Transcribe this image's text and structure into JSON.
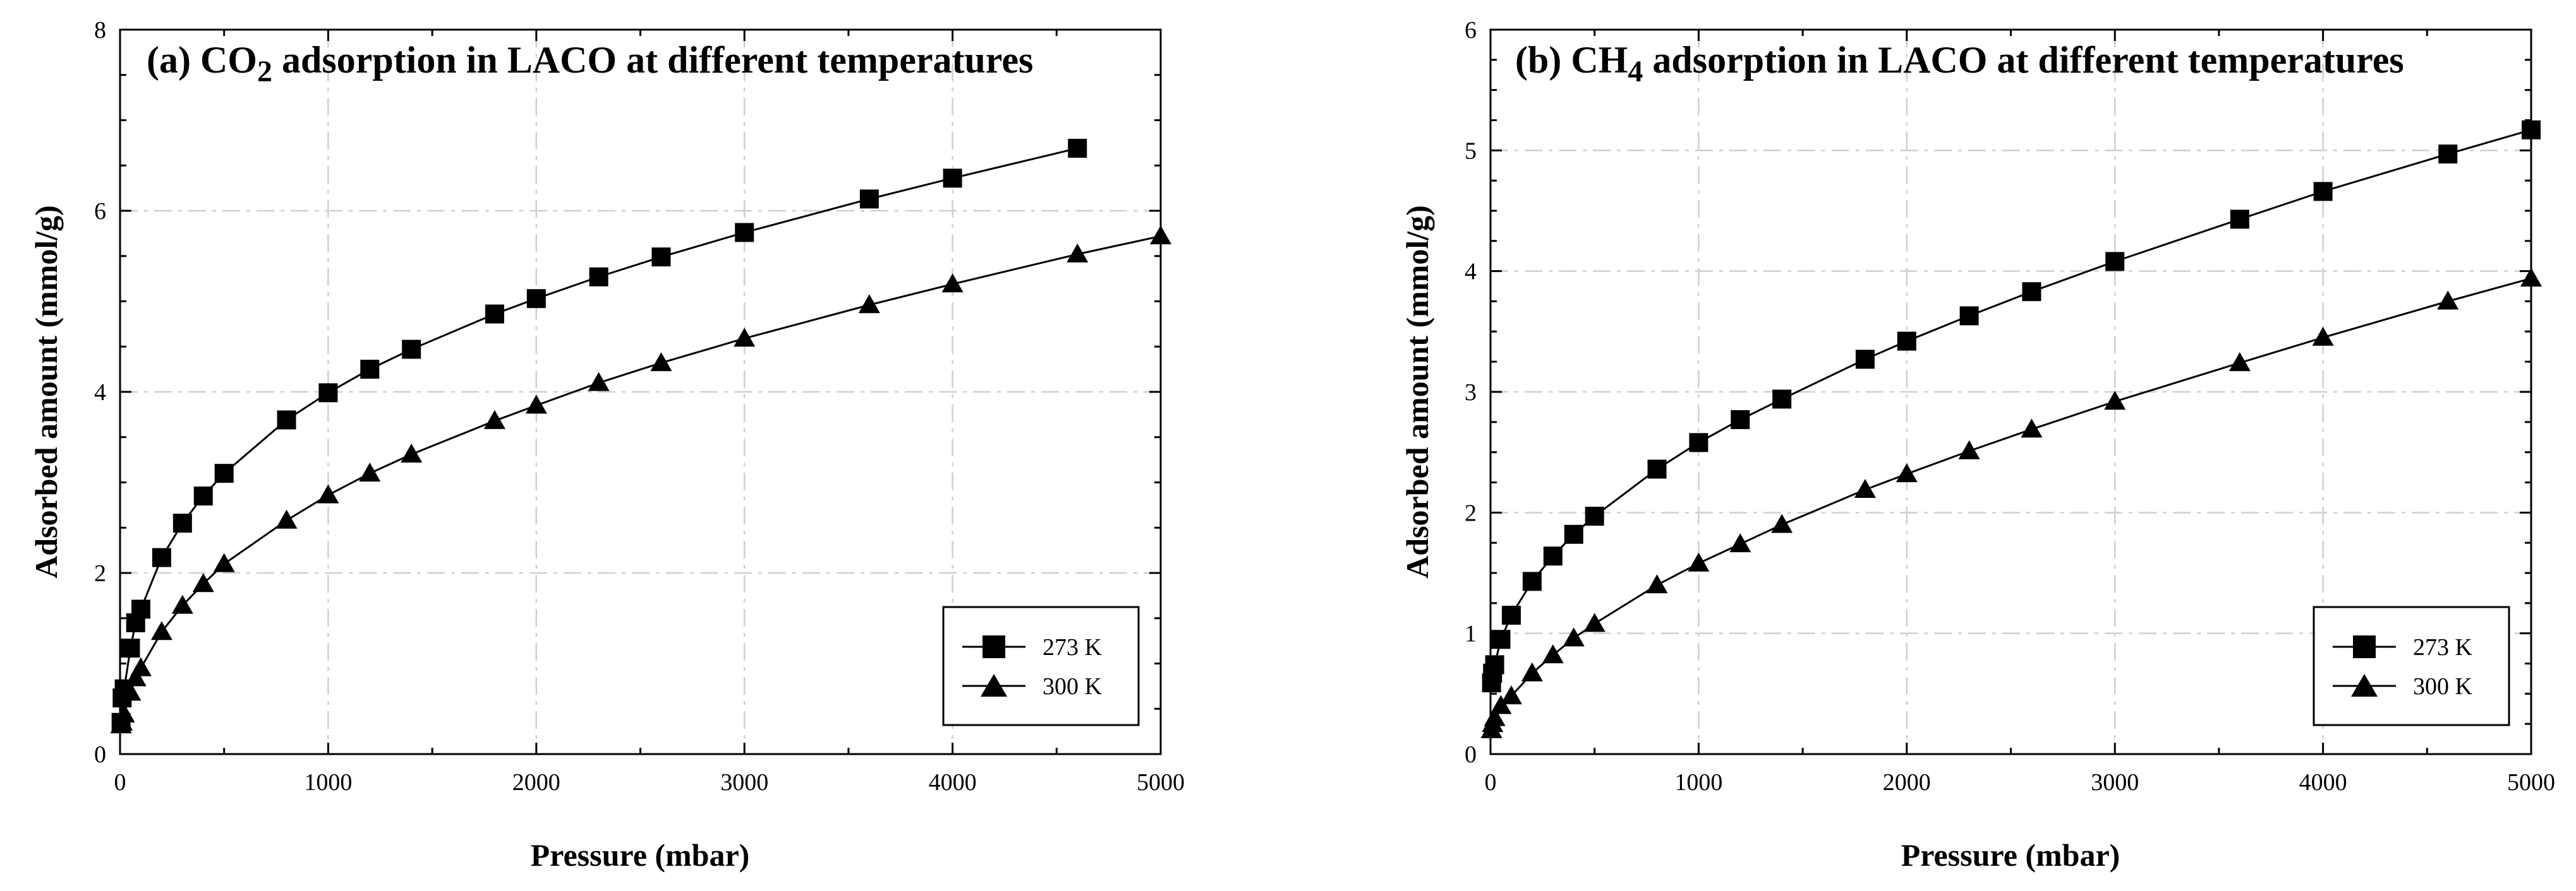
{
  "chart_data": [
    {
      "type": "line",
      "title_prefix": "(a) CO",
      "title_sub": "2",
      "title_suffix": " adsorption in LACO at different temperatures",
      "xlabel": "Pressure (mbar)",
      "ylabel": "Adsorbed amount (mmol/g)",
      "xlim": [
        0,
        5000
      ],
      "ylim": [
        0,
        8
      ],
      "xticks": [
        0,
        1000,
        2000,
        3000,
        4000,
        5000
      ],
      "yticks": [
        0,
        2,
        4,
        6,
        8
      ],
      "grid": true,
      "legend_position": "bottom-right",
      "series": [
        {
          "name": "273 K",
          "marker": "square",
          "x": [
            5,
            10,
            20,
            50,
            75,
            100,
            200,
            300,
            400,
            500,
            800,
            1000,
            1200,
            1400,
            1800,
            2000,
            2300,
            2600,
            3000,
            3600,
            4000,
            4600
          ],
          "y": [
            0.35,
            0.62,
            0.72,
            1.17,
            1.45,
            1.6,
            2.17,
            2.55,
            2.85,
            3.1,
            3.69,
            3.99,
            4.25,
            4.47,
            4.86,
            5.03,
            5.27,
            5.49,
            5.76,
            6.13,
            6.36,
            6.69
          ]
        },
        {
          "name": "300 K",
          "marker": "triangle",
          "x": [
            5,
            10,
            20,
            50,
            75,
            100,
            200,
            300,
            400,
            500,
            800,
            1000,
            1200,
            1400,
            1800,
            2000,
            2300,
            2600,
            3000,
            3600,
            4000,
            4600,
            5000
          ],
          "y": [
            0.32,
            0.35,
            0.44,
            0.68,
            0.84,
            0.95,
            1.35,
            1.64,
            1.88,
            2.1,
            2.58,
            2.86,
            3.1,
            3.31,
            3.68,
            3.85,
            4.1,
            4.32,
            4.59,
            4.96,
            5.19,
            5.52,
            5.72
          ]
        }
      ]
    },
    {
      "type": "line",
      "title_prefix": "(b) CH",
      "title_sub": "4",
      "title_suffix": " adsorption in LACO at different temperatures",
      "xlabel": "Pressure (mbar)",
      "ylabel": "Adsorbed amount (mmol/g)",
      "xlim": [
        0,
        5000
      ],
      "ylim": [
        0,
        6
      ],
      "xticks": [
        0,
        1000,
        2000,
        3000,
        4000,
        5000
      ],
      "yticks": [
        0,
        1,
        2,
        3,
        4,
        5,
        6
      ],
      "grid": true,
      "legend_position": "bottom-right",
      "series": [
        {
          "name": "273 K",
          "marker": "square",
          "x": [
            5,
            10,
            20,
            50,
            100,
            200,
            300,
            400,
            500,
            800,
            1000,
            1200,
            1400,
            1800,
            2000,
            2300,
            2600,
            3000,
            3600,
            4000,
            4600,
            5000
          ],
          "y": [
            0.59,
            0.67,
            0.74,
            0.95,
            1.15,
            1.43,
            1.64,
            1.82,
            1.97,
            2.36,
            2.58,
            2.77,
            2.94,
            3.27,
            3.42,
            3.63,
            3.83,
            4.08,
            4.43,
            4.66,
            4.97,
            5.17
          ]
        },
        {
          "name": "300 K",
          "marker": "triangle",
          "x": [
            5,
            10,
            20,
            50,
            100,
            200,
            300,
            400,
            500,
            800,
            1000,
            1200,
            1400,
            1800,
            2000,
            2300,
            2600,
            3000,
            3600,
            4000,
            4600,
            5000
          ],
          "y": [
            0.2,
            0.25,
            0.3,
            0.4,
            0.48,
            0.67,
            0.82,
            0.96,
            1.08,
            1.4,
            1.58,
            1.74,
            1.9,
            2.19,
            2.32,
            2.51,
            2.69,
            2.92,
            3.24,
            3.45,
            3.75,
            3.94
          ]
        }
      ]
    }
  ]
}
